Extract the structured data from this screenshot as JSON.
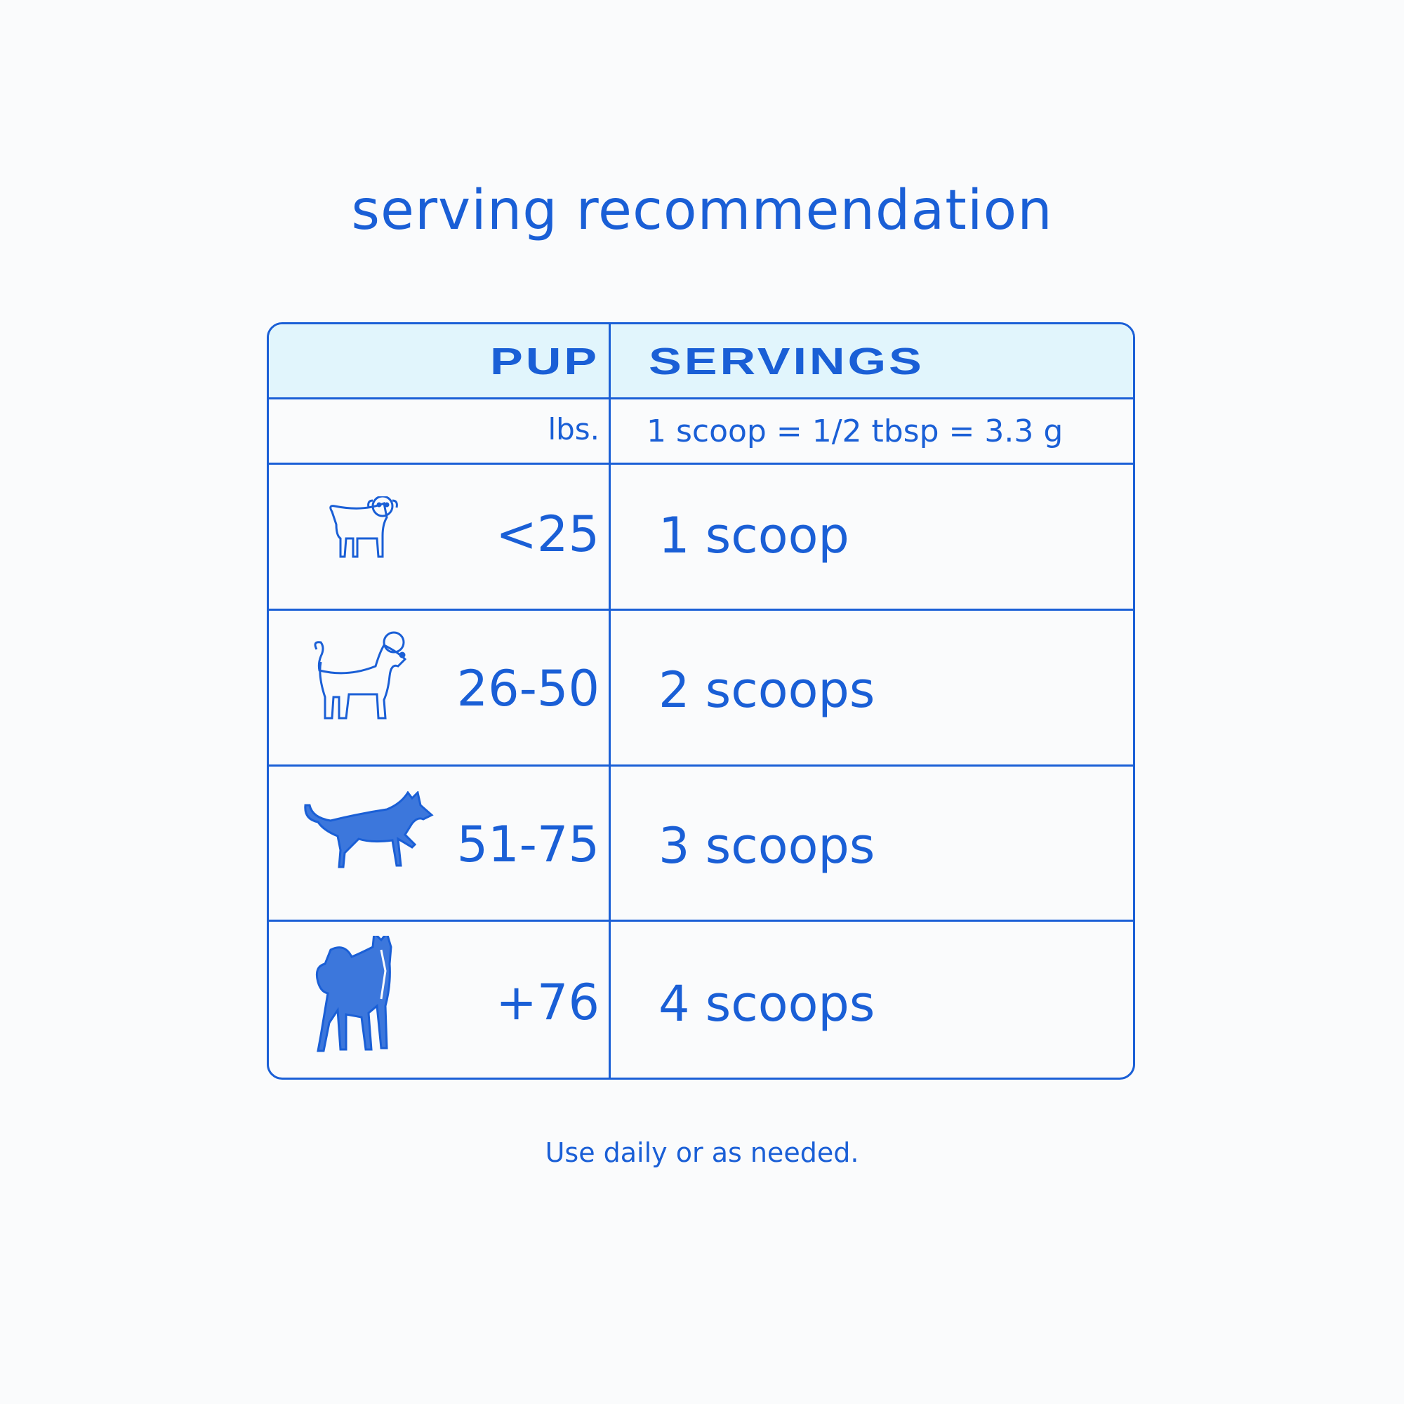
{
  "title": "serving recommendation",
  "colors": {
    "accent": "#1a5fd6",
    "header_bg": "#e1f5fc",
    "background": "#fafbfc"
  },
  "table": {
    "headers": {
      "pup": "PUP",
      "servings": "SERVINGS"
    },
    "units": {
      "pup": "lbs.",
      "servings": "1 scoop = 1/2 tbsp = 3.3 g"
    },
    "rows": [
      {
        "icon": "small-dog-icon",
        "weight": "<25",
        "servings": "1 scoop"
      },
      {
        "icon": "poodle-icon",
        "weight": "26-50",
        "servings": "2 scoops"
      },
      {
        "icon": "shepherd-dog-icon",
        "weight": "51-75",
        "servings": "3 scoops"
      },
      {
        "icon": "husky-icon",
        "weight": "+76",
        "servings": "4 scoops"
      }
    ]
  },
  "footer": "Use daily or as needed."
}
